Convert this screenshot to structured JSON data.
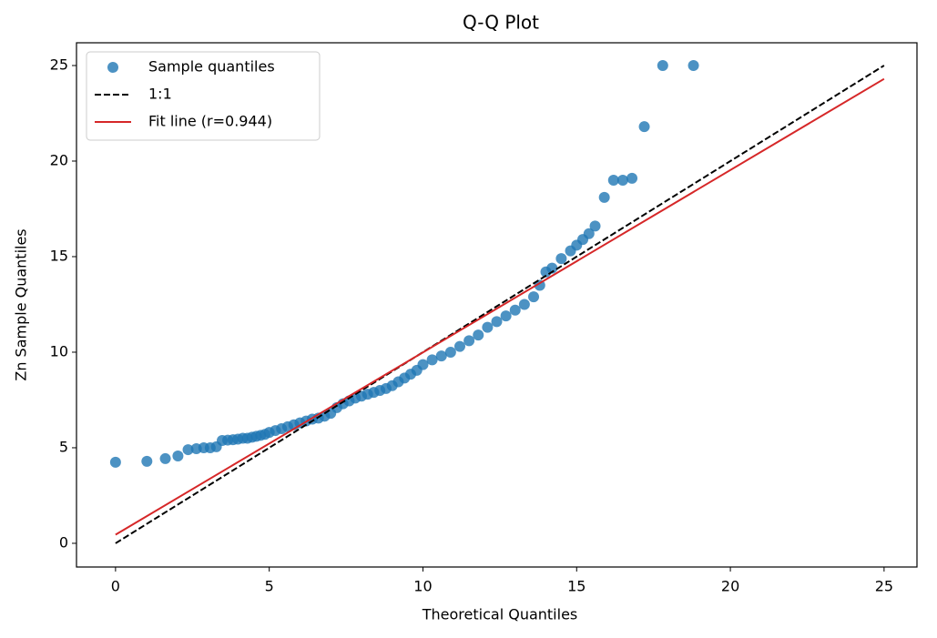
{
  "chart_data": {
    "type": "scatter",
    "title": "Q-Q Plot",
    "x_label": "Theoretical Quantiles",
    "y_label": "Zn Sample Quantiles",
    "xlim": [
      -1.27,
      26.07
    ],
    "ylim": [
      -1.24,
      26.19
    ],
    "xticks": [
      0,
      5,
      10,
      15,
      20,
      25
    ],
    "yticks": [
      0,
      5,
      10,
      15,
      20,
      25
    ],
    "legend": "upper left",
    "series": [
      {
        "name": "Sample quantiles",
        "type": "scatter",
        "color": "#1f77b4",
        "x": [
          0,
          1.02,
          1.62,
          2.03,
          2.36,
          2.63,
          2.87,
          3.08,
          3.28,
          3.47,
          3.65,
          3.82,
          3.98,
          4.14,
          4.29,
          4.44,
          4.58,
          4.72,
          4.86,
          5.0,
          5.2,
          5.4,
          5.6,
          5.8,
          6.0,
          6.2,
          6.4,
          6.6,
          6.8,
          7.0,
          7.2,
          7.4,
          7.6,
          7.8,
          8.0,
          8.2,
          8.4,
          8.6,
          8.8,
          9.0,
          9.2,
          9.4,
          9.6,
          9.8,
          10.0,
          10.3,
          10.6,
          10.9,
          11.2,
          11.5,
          11.8,
          12.1,
          12.4,
          12.7,
          13.0,
          13.3,
          13.6,
          13.8,
          14.0,
          14.2,
          14.5,
          14.8,
          15.0,
          15.2,
          15.4,
          15.6,
          15.9,
          16.2,
          16.5,
          16.8,
          17.2,
          17.8,
          18.8
        ],
        "y": [
          4.24,
          4.29,
          4.43,
          4.57,
          4.9,
          4.95,
          5.0,
          5.0,
          5.05,
          5.38,
          5.4,
          5.42,
          5.45,
          5.5,
          5.5,
          5.55,
          5.6,
          5.65,
          5.7,
          5.8,
          5.9,
          6.0,
          6.1,
          6.2,
          6.3,
          6.4,
          6.5,
          6.55,
          6.65,
          6.8,
          7.1,
          7.3,
          7.45,
          7.6,
          7.7,
          7.8,
          7.9,
          8.0,
          8.1,
          8.25,
          8.45,
          8.65,
          8.85,
          9.05,
          9.35,
          9.6,
          9.8,
          10.0,
          10.3,
          10.6,
          10.9,
          11.3,
          11.6,
          11.9,
          12.2,
          12.5,
          12.9,
          13.5,
          14.2,
          14.4,
          14.9,
          15.3,
          15.6,
          15.9,
          16.2,
          16.6,
          18.1,
          19.0,
          19.0,
          19.1,
          21.8,
          25.0,
          25.0
        ]
      },
      {
        "name": "1:1",
        "type": "line",
        "color": "#000000",
        "linestyle": "dashed",
        "x": [
          0,
          25
        ],
        "y": [
          0,
          25
        ]
      },
      {
        "name": "Fit line (r=0.944)",
        "type": "line",
        "color": "#d62728",
        "linestyle": "solid",
        "x": [
          0,
          25
        ],
        "y": [
          0.45,
          24.3
        ]
      }
    ]
  }
}
